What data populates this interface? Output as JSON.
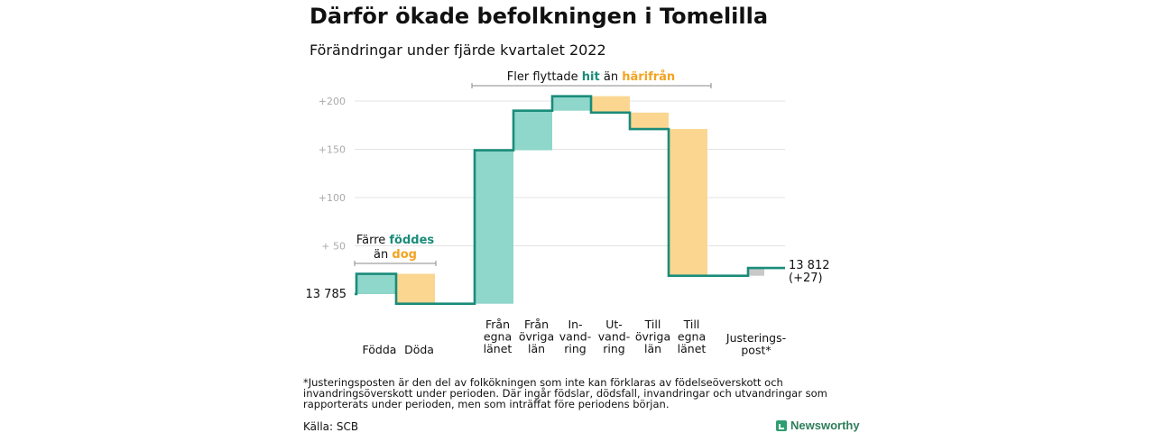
{
  "title": "Därför ökade befolkningen i Tomelilla",
  "subtitle": "Förändringar under fjärde kvartalet 2022",
  "footnote": "*Justeringsposten är den del av folkökningen som inte kan förklaras av födelseöverskott och invandringsöverskott under perioden. Där ingår födslar, dödsfall, invandringar och utvandringar som rapporterats under perioden, men som inträffat före periodens början.",
  "source": "Källa: SCB",
  "brand": "Newsworthy",
  "colors": {
    "increase": "#8fd6cb",
    "decrease": "#fad690",
    "adjustment": "#c8c8c8",
    "line": "#1a8c7a",
    "teal_text": "#1a8c7a",
    "orange_text": "#f3a321",
    "grid": "#e3e3e3",
    "tick": "#aaaaaa"
  },
  "chart_data": {
    "type": "waterfall",
    "start_label": "13 785",
    "end_label_line1": "13 812",
    "end_label_line2": "(+27)",
    "ylim": [
      -10,
      205
    ],
    "yticks": [
      {
        "value": 50,
        "label": "+ 50"
      },
      {
        "value": 100,
        "label": "+100"
      },
      {
        "value": 150,
        "label": "+150"
      },
      {
        "value": 200,
        "label": "+200"
      }
    ],
    "steps": [
      {
        "label": [
          "Födda"
        ],
        "change": 21,
        "kind": "increase"
      },
      {
        "label": [
          "Döda"
        ],
        "change": -31,
        "kind": "decrease"
      },
      {
        "label": [
          "Från",
          "egna",
          "länet"
        ],
        "change": 159,
        "kind": "increase"
      },
      {
        "label": [
          "Från",
          "övriga",
          "län"
        ],
        "change": 41,
        "kind": "increase"
      },
      {
        "label": [
          "In-",
          "vand-",
          "ring"
        ],
        "change": 15,
        "kind": "increase"
      },
      {
        "label": [
          "Ut-",
          "vand-",
          "ring"
        ],
        "change": -17,
        "kind": "decrease"
      },
      {
        "label": [
          "Till",
          "övriga",
          "län"
        ],
        "change": -17,
        "kind": "decrease"
      },
      {
        "label": [
          "Till",
          "egna",
          "länet"
        ],
        "change": -152,
        "kind": "decrease"
      },
      {
        "label": [
          "Justerings-",
          "post*"
        ],
        "change": 8,
        "kind": "adjustment"
      }
    ],
    "end_total": 27,
    "annotations": {
      "left": {
        "t1": "Färre ",
        "t2": "föddes",
        "t3": "än ",
        "t4": "dog"
      },
      "top": {
        "t1": "Fler flyttade ",
        "t2": "hit",
        "t3": " än ",
        "t4": "härifrån"
      }
    }
  }
}
